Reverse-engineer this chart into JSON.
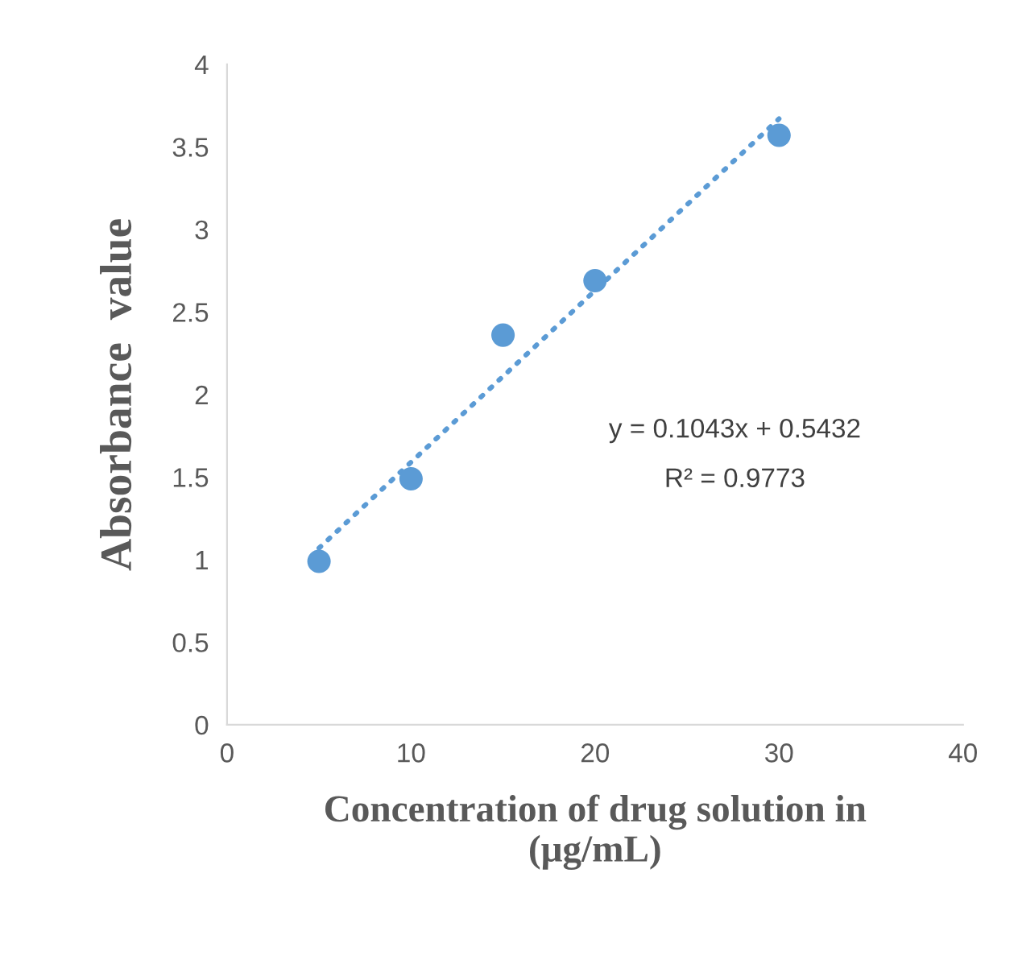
{
  "chart_data": {
    "type": "scatter",
    "xlabel": "Concentration of drug solution in\n(μg/mL)",
    "ylabel": "Absorbance  value",
    "x": [
      5,
      10,
      15,
      20,
      30
    ],
    "series": [
      {
        "color": "#5b9bd5",
        "values": [
          0.99,
          1.49,
          2.36,
          2.69,
          3.57
        ],
        "marker": "circle"
      },
      {
        "type": "line",
        "color": "#5b9bd5",
        "x": [
          5,
          30
        ],
        "values": [
          1.07,
          3.67
        ],
        "line_style": "dotted",
        "marker": "none"
      }
    ],
    "annotations": [
      "y = 0.1043x + 0.5432",
      "R² = 0.9773"
    ],
    "xlim": [
      0,
      40
    ],
    "xticks": [
      0,
      10,
      20,
      30,
      40
    ],
    "ylim": [
      0,
      4
    ],
    "yticks": [
      0,
      0.5,
      1,
      1.5,
      2,
      2.5,
      3,
      3.5,
      4
    ],
    "grid": false
  }
}
